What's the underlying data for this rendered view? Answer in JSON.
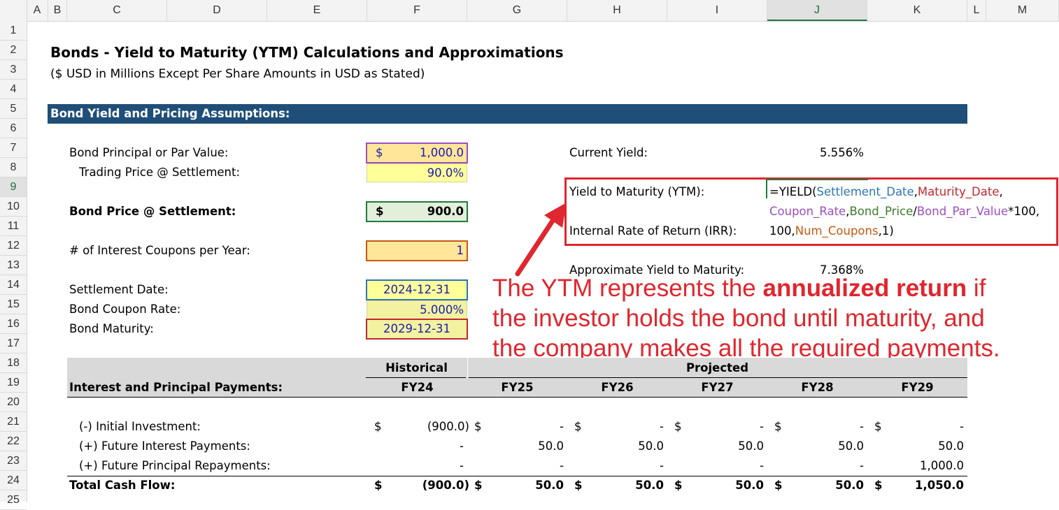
{
  "columns": [
    "A",
    "B",
    "C",
    "D",
    "E",
    "F",
    "G",
    "H",
    "I",
    "J",
    "K",
    "L",
    "M"
  ],
  "rows": [
    "1",
    "2",
    "3",
    "4",
    "5",
    "6",
    "7",
    "8",
    "9",
    "10",
    "11",
    "12",
    "13",
    "14",
    "15",
    "16",
    "17",
    "18",
    "19",
    "20",
    "21",
    "22",
    "23",
    "24",
    "25"
  ],
  "selected_column": "J",
  "selected_row": "9",
  "title": "Bonds - Yield to Maturity (YTM) Calculations and Approximations",
  "subtitle": "($ USD in Millions Except Per Share Amounts in USD as Stated)",
  "section_header": "Bond Yield and Pricing Assumptions:",
  "assumptions": {
    "par_label": "Bond Principal or Par Value:",
    "par_currency": "$",
    "par_value": "1,000.0",
    "trading_label": "Trading Price @ Settlement:",
    "trading_value": "90.0%",
    "price_label": "Bond Price @ Settlement:",
    "price_currency": "$",
    "price_value": "900.0",
    "coupons_label": "# of Interest Coupons per Year:",
    "coupons_value": "1",
    "settlement_label": "Settlement Date:",
    "settlement_value": "2024-12-31",
    "coupon_rate_label": "Bond Coupon Rate:",
    "coupon_rate_value": "5.000%",
    "maturity_label": "Bond Maturity:",
    "maturity_value": "2029-12-31"
  },
  "results": {
    "current_yield_label": "Current Yield:",
    "current_yield_value": "5.556%",
    "ytm_label": "Yield to Maturity (YTM):",
    "irr_label": "Internal Rate of Return (IRR):",
    "approx_ytm_label": "Approximate Yield to Maturity:",
    "approx_ytm_value": "7.368%"
  },
  "formula": {
    "line1": [
      {
        "text": "=YIELD(",
        "color": "#000000"
      },
      {
        "text": "Settlement_Date",
        "color": "#2e75b6"
      },
      {
        "text": ",",
        "color": "#000000"
      },
      {
        "text": "Maturity_Date",
        "color": "#c0282d"
      },
      {
        "text": ",",
        "color": "#000000"
      }
    ],
    "line2": [
      {
        "text": "Coupon_Rate",
        "color": "#9b4fbf"
      },
      {
        "text": ",",
        "color": "#000000"
      },
      {
        "text": "Bond_Price",
        "color": "#3a7d2a"
      },
      {
        "text": "/",
        "color": "#000000"
      },
      {
        "text": "Bond_Par_Value",
        "color": "#9b4fbf"
      },
      {
        "text": "*100,",
        "color": "#000000"
      }
    ],
    "line3": [
      {
        "text": "100,",
        "color": "#000000"
      },
      {
        "text": "Num_Coupons",
        "color": "#c65911"
      },
      {
        "text": ",1)",
        "color": "#000000"
      }
    ]
  },
  "annotation": {
    "line1_pre": "The YTM represents the ",
    "line1_bold": "annualized return",
    "line1_post": " if",
    "line2": "the investor holds the bond until maturity, and",
    "line3": "the company makes all the required payments.",
    "color": "#e0262e"
  },
  "table": {
    "historical_label": "Historical",
    "projected_label": "Projected",
    "header_label": "Interest and Principal Payments:",
    "years": [
      "FY24",
      "FY25",
      "FY26",
      "FY27",
      "FY28",
      "FY29"
    ],
    "rows": [
      {
        "label": "(-) Initial Investment:",
        "dollar": true,
        "bold": false,
        "values": [
          "(900.0)",
          "-",
          "-",
          "-",
          "-",
          "-"
        ]
      },
      {
        "label": "(+) Future Interest Payments:",
        "dollar": false,
        "bold": false,
        "values": [
          "-",
          "50.0",
          "50.0",
          "50.0",
          "50.0",
          "50.0"
        ]
      },
      {
        "label": "(+) Future Principal Repayments:",
        "dollar": false,
        "bold": false,
        "values": [
          "-",
          "-",
          "-",
          "-",
          "-",
          "1,000.0"
        ]
      },
      {
        "label": "Total Cash Flow:",
        "dollar": true,
        "bold": true,
        "values": [
          "(900.0)",
          "50.0",
          "50.0",
          "50.0",
          "50.0",
          "1,050.0"
        ]
      }
    ],
    "currency_symbol": "$"
  },
  "colors": {
    "section_bar": "#1f4e79",
    "input_fill": "#ffff99",
    "annotation_red": "#e0262e"
  }
}
